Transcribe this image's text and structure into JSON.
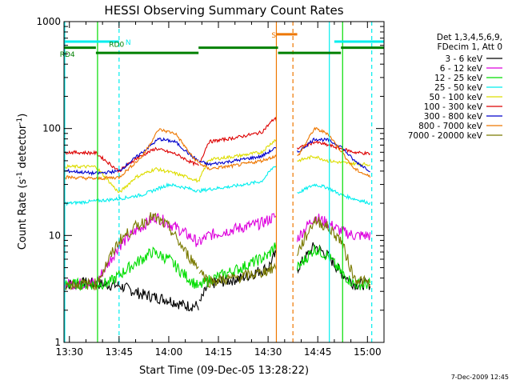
{
  "chart_data": {
    "type": "line",
    "title": "HESSI Observing Summary Count Rates",
    "xlabel": "Start Time (09-Dec-05 13:28:22)",
    "ylabel_pre": "Count Rate (s",
    "ylabel_sup1": "-1",
    "ylabel_mid": " detector",
    "ylabel_sup2": "-1",
    "ylabel_post": ")",
    "ylog": true,
    "xlim_min": [
      28.37,
      125
    ],
    "ylim": [
      1,
      1000
    ],
    "x_ticks": [
      {
        "min": 30,
        "label": "13:30"
      },
      {
        "min": 45,
        "label": "13:45"
      },
      {
        "min": 60,
        "label": "14:00"
      },
      {
        "min": 75,
        "label": "14:15"
      },
      {
        "min": 90,
        "label": "14:30"
      },
      {
        "min": 105,
        "label": "14:45"
      },
      {
        "min": 120,
        "label": "15:00"
      }
    ],
    "y_ticks": [
      {
        "value": 1,
        "label": "1"
      },
      {
        "value": 10,
        "label": "10"
      },
      {
        "value": 100,
        "label": "100"
      },
      {
        "value": 1000,
        "label": "1000"
      }
    ],
    "legend_header": [
      "Det 1,3,4,5,6,9,",
      "FDecim 1, Att 0"
    ],
    "legend_placement": "right",
    "timestamp": "7-Dec-2009 12:45",
    "segments": [
      [
        28.5,
        69.2
      ],
      [
        69.2,
        92.5
      ],
      [
        98.8,
        121.0
      ]
    ],
    "series": [
      {
        "name": "3 - 6 keV",
        "color": "#000000",
        "ridge": [
          [
            30,
            3.5
          ],
          [
            35,
            3.6
          ],
          [
            45,
            3.4
          ],
          [
            52,
            2.8
          ],
          [
            60,
            2.5
          ],
          [
            65,
            2.2
          ],
          [
            69,
            2.2
          ],
          [
            72,
            3.5
          ],
          [
            82,
            4.0
          ],
          [
            90,
            5.0
          ],
          [
            92,
            6.5
          ],
          [
            99,
            5.0
          ],
          [
            104,
            8.0
          ],
          [
            108,
            6.5
          ],
          [
            112,
            4.5
          ],
          [
            116,
            3.5
          ],
          [
            121,
            3.5
          ]
        ]
      },
      {
        "name": "6 - 12 keV",
        "color": "#dd00dd",
        "ridge": [
          [
            30,
            3.5
          ],
          [
            38,
            3.6
          ],
          [
            45,
            8.0
          ],
          [
            50,
            11
          ],
          [
            56,
            15
          ],
          [
            62,
            12
          ],
          [
            67,
            9.5
          ],
          [
            69,
            8.5
          ],
          [
            72,
            10
          ],
          [
            80,
            11.5
          ],
          [
            88,
            13
          ],
          [
            92,
            15
          ],
          [
            99,
            9.5
          ],
          [
            104,
            15
          ],
          [
            108,
            13
          ],
          [
            112,
            11
          ],
          [
            116,
            10
          ],
          [
            121,
            10
          ]
        ]
      },
      {
        "name": "12 - 25 keV",
        "color": "#00dd00",
        "ridge": [
          [
            30,
            3.5
          ],
          [
            38,
            3.5
          ],
          [
            42,
            3.6
          ],
          [
            48,
            5.0
          ],
          [
            55,
            7.0
          ],
          [
            60,
            6.0
          ],
          [
            64,
            4.5
          ],
          [
            69,
            3.3
          ],
          [
            72,
            3.8
          ],
          [
            82,
            5.0
          ],
          [
            90,
            6.5
          ],
          [
            92,
            8.0
          ],
          [
            99,
            5.0
          ],
          [
            104,
            7.5
          ],
          [
            108,
            6.5
          ],
          [
            112,
            4.5
          ],
          [
            116,
            3.5
          ],
          [
            121,
            3.5
          ]
        ]
      },
      {
        "name": "25 - 50 keV",
        "color": "#00eeee",
        "ridge": [
          [
            30,
            20
          ],
          [
            38,
            21
          ],
          [
            45,
            22
          ],
          [
            52,
            24
          ],
          [
            60,
            30
          ],
          [
            65,
            28
          ],
          [
            69,
            26
          ],
          [
            72,
            27
          ],
          [
            80,
            29
          ],
          [
            88,
            32
          ],
          [
            92,
            45
          ],
          [
            99,
            25
          ],
          [
            104,
            30
          ],
          [
            108,
            28
          ],
          [
            112,
            24
          ],
          [
            116,
            22
          ],
          [
            121,
            20
          ]
        ]
      },
      {
        "name": "50 - 100 keV",
        "color": "#dddd00",
        "ridge": [
          [
            30,
            44
          ],
          [
            38,
            44
          ],
          [
            45,
            25
          ],
          [
            50,
            35
          ],
          [
            56,
            42
          ],
          [
            62,
            38
          ],
          [
            67,
            34
          ],
          [
            69,
            32
          ],
          [
            72,
            51
          ],
          [
            80,
            55
          ],
          [
            88,
            60
          ],
          [
            92,
            78
          ],
          [
            99,
            50
          ],
          [
            104,
            55
          ],
          [
            108,
            50
          ],
          [
            112,
            48
          ],
          [
            116,
            47
          ],
          [
            121,
            46
          ]
        ]
      },
      {
        "name": "100 - 300 keV",
        "color": "#dd0000",
        "ridge": [
          [
            30,
            60
          ],
          [
            38,
            59
          ],
          [
            45,
            40
          ],
          [
            50,
            52
          ],
          [
            56,
            65
          ],
          [
            62,
            58
          ],
          [
            67,
            48
          ],
          [
            69,
            45
          ],
          [
            72,
            75
          ],
          [
            80,
            82
          ],
          [
            88,
            92
          ],
          [
            92,
            125
          ],
          [
            99,
            65
          ],
          [
            104,
            75
          ],
          [
            108,
            70
          ],
          [
            112,
            65
          ],
          [
            116,
            60
          ],
          [
            121,
            58
          ]
        ]
      },
      {
        "name": "300 - 800 keV",
        "color": "#0000cc",
        "ridge": [
          [
            30,
            40
          ],
          [
            38,
            38
          ],
          [
            45,
            40
          ],
          [
            52,
            60
          ],
          [
            57,
            80
          ],
          [
            62,
            75
          ],
          [
            67,
            55
          ],
          [
            69,
            50
          ],
          [
            72,
            46
          ],
          [
            80,
            50
          ],
          [
            88,
            55
          ],
          [
            92,
            65
          ],
          [
            99,
            60
          ],
          [
            104,
            80
          ],
          [
            108,
            78
          ],
          [
            112,
            68
          ],
          [
            116,
            50
          ],
          [
            121,
            40
          ]
        ]
      },
      {
        "name": "800 - 7000 keV",
        "color": "#ee7700",
        "ridge": [
          [
            30,
            35
          ],
          [
            38,
            34
          ],
          [
            45,
            35
          ],
          [
            52,
            55
          ],
          [
            57,
            98
          ],
          [
            62,
            90
          ],
          [
            67,
            55
          ],
          [
            69,
            48
          ],
          [
            72,
            42
          ],
          [
            80,
            45
          ],
          [
            88,
            50
          ],
          [
            92,
            55
          ],
          [
            99,
            55
          ],
          [
            104,
            100
          ],
          [
            108,
            90
          ],
          [
            112,
            62
          ],
          [
            116,
            42
          ],
          [
            121,
            35
          ]
        ]
      },
      {
        "name": "7000 - 20000 keV",
        "color": "#7a7a00",
        "ridge": [
          [
            30,
            3.5
          ],
          [
            38,
            3.5
          ],
          [
            45,
            9.0
          ],
          [
            50,
            12
          ],
          [
            55,
            15
          ],
          [
            60,
            12
          ],
          [
            65,
            7.0
          ],
          [
            69,
            5.0
          ],
          [
            72,
            3.7
          ],
          [
            80,
            4.0
          ],
          [
            88,
            4.5
          ],
          [
            92,
            5.0
          ],
          [
            99,
            7.0
          ],
          [
            104,
            14
          ],
          [
            108,
            12
          ],
          [
            112,
            9.0
          ],
          [
            116,
            4.0
          ],
          [
            121,
            3.5
          ]
        ]
      }
    ],
    "annotations": {
      "N": [
        {
          "text": "N",
          "y": 650,
          "start": 28.5,
          "end": 45.0,
          "text_at": 45.5,
          "color": "#00eeee"
        },
        {
          "y": 650,
          "start": 110.0,
          "end": 125.0,
          "color": "#00eeee"
        }
      ],
      "RD0": {
        "text": "RD0",
        "y": 600,
        "start": 40.0,
        "end": 41.0,
        "text_at": 41.0,
        "color": "#008000"
      },
      "RD4": {
        "text": "RD4",
        "y": 510,
        "text_at": 30.0,
        "color": "#008000"
      },
      "green_bars": [
        {
          "y": 570,
          "start": 28.5,
          "end": 38.0
        },
        {
          "y": 510,
          "start": 38.0,
          "end": 69.0
        },
        {
          "y": 570,
          "start": 69.0,
          "end": 93.0
        },
        {
          "y": 510,
          "start": 93.0,
          "end": 112.0
        },
        {
          "y": 570,
          "start": 112.0,
          "end": 125.0
        }
      ],
      "S": {
        "text": "S",
        "y": 760,
        "start": 92.5,
        "end": 98.8,
        "text_at": 91.5,
        "color": "#ee7700"
      }
    },
    "vlines": [
      {
        "x": 28.6,
        "color": "#00eeee",
        "style": "solid"
      },
      {
        "x": 45.0,
        "color": "#00eeee",
        "style": "dashed"
      },
      {
        "x": 108.5,
        "color": "#00eeee",
        "style": "solid"
      },
      {
        "x": 121.3,
        "color": "#00eeee",
        "style": "dashed"
      },
      {
        "x": 92.5,
        "color": "#ee7700",
        "style": "solid"
      },
      {
        "x": 97.5,
        "color": "#ee7700",
        "style": "dashed"
      },
      {
        "x": 38.5,
        "color": "#00dd00",
        "style": "solid"
      },
      {
        "x": 112.5,
        "color": "#00dd00",
        "style": "solid"
      }
    ]
  }
}
